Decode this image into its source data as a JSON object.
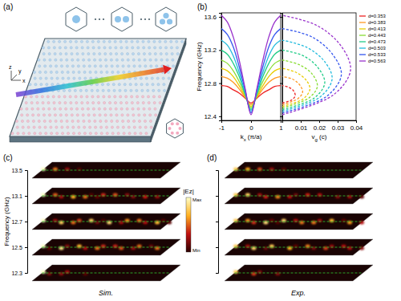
{
  "chart_data": [
    {
      "type": "line",
      "ylabel": "Frequency (GHz)",
      "xlabel": "kx (π/a)",
      "x": [
        -1,
        -0.8,
        -0.6,
        -0.4,
        -0.2,
        0,
        0.2,
        0.4,
        0.6,
        0.8,
        1
      ],
      "xlim": [
        -1,
        1
      ],
      "xticks": [
        -1,
        0,
        1
      ],
      "ylim": [
        12.35,
        13.65
      ],
      "yticks": [
        12.4,
        12.8,
        13.2,
        13.6
      ],
      "line_style": "solid",
      "series": [
        {
          "color": "#ee2222",
          "values": [
            12.77,
            12.76,
            12.72,
            12.68,
            12.62,
            12.56,
            12.62,
            12.68,
            12.72,
            12.76,
            12.77
          ]
        },
        {
          "color": "#ff9922",
          "values": [
            12.88,
            12.86,
            12.81,
            12.73,
            12.63,
            12.54,
            12.63,
            12.73,
            12.81,
            12.86,
            12.88
          ]
        },
        {
          "color": "#e8cc00",
          "values": [
            12.98,
            12.95,
            12.88,
            12.77,
            12.64,
            12.52,
            12.64,
            12.77,
            12.88,
            12.95,
            12.98
          ]
        },
        {
          "color": "#88dd33",
          "values": [
            13.08,
            13.04,
            12.95,
            12.82,
            12.66,
            12.5,
            12.66,
            12.82,
            12.95,
            13.04,
            13.08
          ]
        },
        {
          "color": "#22cc88",
          "values": [
            13.2,
            13.15,
            13.04,
            12.88,
            12.67,
            12.48,
            12.67,
            12.88,
            13.04,
            13.15,
            13.2
          ]
        },
        {
          "color": "#22bbdd",
          "values": [
            13.32,
            13.26,
            13.13,
            12.93,
            12.69,
            12.46,
            12.69,
            12.93,
            13.13,
            13.26,
            13.32
          ]
        },
        {
          "color": "#3355ee",
          "values": [
            13.46,
            13.39,
            13.24,
            13.0,
            12.72,
            12.44,
            12.72,
            13.0,
            13.24,
            13.39,
            13.46
          ]
        },
        {
          "color": "#9933cc",
          "values": [
            13.62,
            13.54,
            13.36,
            13.08,
            12.74,
            12.42,
            12.74,
            13.08,
            13.36,
            13.54,
            13.62
          ]
        }
      ]
    },
    {
      "type": "line",
      "xlabel": "vg (c)",
      "xlim": [
        0,
        0.04
      ],
      "xticks": [
        0.01,
        0.02,
        0.03,
        0.04
      ],
      "ylim": [
        12.35,
        13.65
      ],
      "yticks": [
        12.4,
        12.8,
        13.2,
        13.6
      ],
      "tick_labels": "x",
      "line_style": "dashed",
      "legend": "right",
      "series": [
        {
          "name": "d=0.353",
          "color": "#ee2222",
          "x": [
            0,
            0.0053,
            0.007,
            0.006,
            0.0035,
            0
          ],
          "values": [
            12.56,
            12.6,
            12.65,
            12.71,
            12.75,
            12.77
          ]
        },
        {
          "name": "d=0.383",
          "color": "#ff9922",
          "x": [
            0,
            0.0083,
            0.011,
            0.0094,
            0.0055,
            0
          ],
          "values": [
            12.54,
            12.61,
            12.69,
            12.78,
            12.85,
            12.88
          ]
        },
        {
          "name": "d=0.413",
          "color": "#e8cc00",
          "x": [
            0,
            0.0113,
            0.015,
            0.0128,
            0.0075,
            0
          ],
          "values": [
            12.52,
            12.61,
            12.73,
            12.84,
            12.93,
            12.98
          ]
        },
        {
          "name": "d=0.443",
          "color": "#88dd33",
          "x": [
            0,
            0.0143,
            0.019,
            0.0162,
            0.0095,
            0
          ],
          "values": [
            12.5,
            12.62,
            12.76,
            12.91,
            13.02,
            13.08
          ]
        },
        {
          "name": "d=0.473",
          "color": "#22cc88",
          "x": [
            0,
            0.0173,
            0.023,
            0.0196,
            0.0115,
            0
          ],
          "values": [
            12.48,
            12.62,
            12.8,
            12.98,
            13.13,
            13.2
          ]
        },
        {
          "name": "d=0.503",
          "color": "#22bbdd",
          "x": [
            0,
            0.0203,
            0.027,
            0.023,
            0.0135,
            0
          ],
          "values": [
            12.46,
            12.63,
            12.85,
            13.06,
            13.23,
            13.32
          ]
        },
        {
          "name": "d=0.533",
          "color": "#3355ee",
          "x": [
            0,
            0.024,
            0.032,
            0.0272,
            0.016,
            0
          ],
          "values": [
            12.44,
            12.64,
            12.9,
            13.15,
            13.36,
            13.46
          ]
        },
        {
          "name": "d=0.563",
          "color": "#9933cc",
          "x": [
            0,
            0.0278,
            0.037,
            0.0315,
            0.0185,
            0
          ],
          "values": [
            12.42,
            12.66,
            12.96,
            13.26,
            13.5,
            13.62
          ]
        }
      ]
    }
  ],
  "panels": {
    "a": {
      "label": "(a)",
      "axes": [
        "y",
        "z",
        "x"
      ]
    },
    "b": {
      "label": "(b)"
    },
    "c": {
      "label": "(c)",
      "caption": "Sim.",
      "ylabel": "Frequency (GHz)",
      "frequencies": [
        12.3,
        12.5,
        12.7,
        13.1,
        13.5
      ],
      "colorbar": {
        "title": "|Ez|",
        "max_label": "Max",
        "min_label": "Min"
      }
    },
    "d": {
      "label": "(d)",
      "caption": "Exp."
    }
  }
}
